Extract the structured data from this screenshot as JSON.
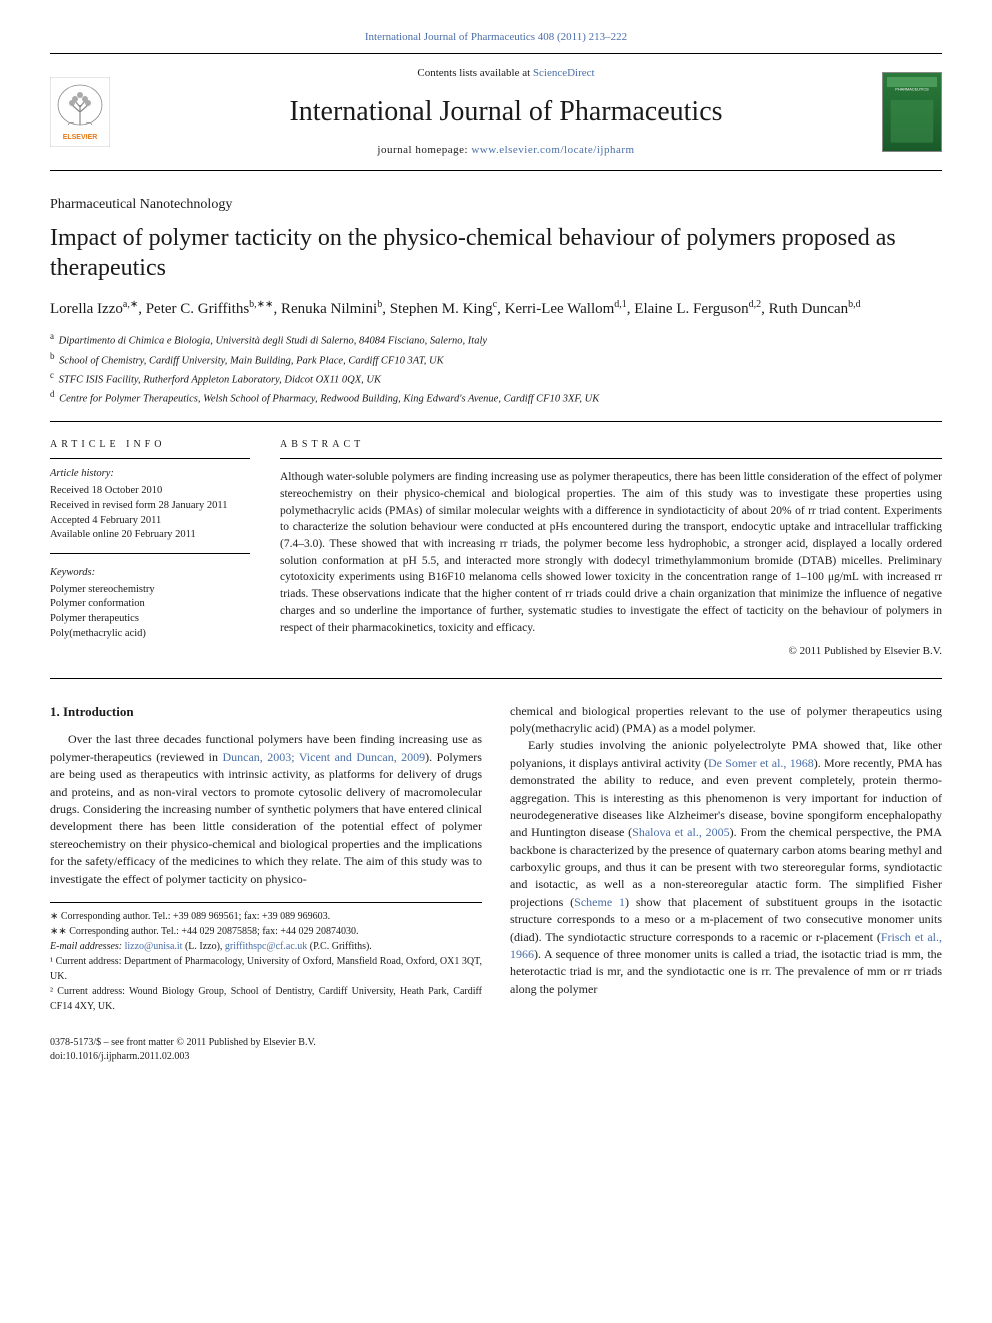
{
  "top_citation": "International Journal of Pharmaceutics 408 (2011) 213–222",
  "header": {
    "contents_prefix": "Contents lists available at ",
    "contents_link": "ScienceDirect",
    "journal_name": "International Journal of Pharmaceutics",
    "homepage_prefix": "journal homepage: ",
    "homepage_url": "www.elsevier.com/locate/ijpharm",
    "cover_label": "PHARMACEUTICS"
  },
  "section_label": "Pharmaceutical Nanotechnology",
  "title": "Impact of polymer tacticity on the physico-chemical behaviour of polymers proposed as therapeutics",
  "authors_html": "Lorella Izzo<sup>a,∗</sup>, Peter C. Griffiths<sup>b,∗∗</sup>, Renuka Nilmini<sup>b</sup>, Stephen M. King<sup>c</sup>, Kerri-Lee Wallom<sup>d,1</sup>, Elaine L. Ferguson<sup>d,2</sup>, Ruth Duncan<sup>b,d</sup>",
  "affiliations": [
    {
      "sup": "a",
      "text": "Dipartimento di Chimica e Biologia, Università degli Studi di Salerno, 84084 Fisciano, Salerno, Italy"
    },
    {
      "sup": "b",
      "text": "School of Chemistry, Cardiff University, Main Building, Park Place, Cardiff CF10 3AT, UK"
    },
    {
      "sup": "c",
      "text": "STFC ISIS Facility, Rutherford Appleton Laboratory, Didcot OX11 0QX, UK"
    },
    {
      "sup": "d",
      "text": "Centre for Polymer Therapeutics, Welsh School of Pharmacy, Redwood Building, King Edward's Avenue, Cardiff CF10 3XF, UK"
    }
  ],
  "article_info": {
    "heading": "article info",
    "history_label": "Article history:",
    "history": [
      "Received 18 October 2010",
      "Received in revised form 28 January 2011",
      "Accepted 4 February 2011",
      "Available online 20 February 2011"
    ],
    "keywords_label": "Keywords:",
    "keywords": [
      "Polymer stereochemistry",
      "Polymer conformation",
      "Polymer therapeutics",
      "Poly(methacrylic acid)"
    ]
  },
  "abstract": {
    "heading": "abstract",
    "text": "Although water-soluble polymers are finding increasing use as polymer therapeutics, there has been little consideration of the effect of polymer stereochemistry on their physico-chemical and biological properties. The aim of this study was to investigate these properties using polymethacrylic acids (PMAs) of similar molecular weights with a difference in syndiotacticity of about 20% of rr triad content. Experiments to characterize the solution behaviour were conducted at pHs encountered during the transport, endocytic uptake and intracellular trafficking (7.4–3.0). These showed that with increasing rr triads, the polymer become less hydrophobic, a stronger acid, displayed a locally ordered solution conformation at pH 5.5, and interacted more strongly with dodecyl trimethylammonium bromide (DTAB) micelles. Preliminary cytotoxicity experiments using B16F10 melanoma cells showed lower toxicity in the concentration range of 1–100 μg/mL with increased rr triads. These observations indicate that the higher content of rr triads could drive a chain organization that minimize the influence of negative charges and so underline the importance of further, systematic studies to investigate the effect of tacticity on the behaviour of polymers in respect of their pharmacokinetics, toxicity and efficacy.",
    "copyright": "© 2011 Published by Elsevier B.V."
  },
  "body": {
    "section_heading": "1. Introduction",
    "para1_pre": "Over the last three decades functional polymers have been finding increasing use as polymer-therapeutics (reviewed in ",
    "para1_cite": "Duncan, 2003; Vicent and Duncan, 2009",
    "para1_post": "). Polymers are being used as therapeutics with intrinsic activity, as platforms for delivery of drugs and proteins, and as non-viral vectors to promote cytosolic delivery of macromolecular drugs. Considering the increasing number of synthetic polymers that have entered clinical development there has been little consideration of the potential effect of polymer stereochemistry on their physico-chemical and biological properties and the implications for the safety/efficacy of the medicines to which they relate. The aim of this study was to investigate the effect of polymer tacticity on physico-",
    "para1_tail": "chemical and biological properties relevant to the use of polymer therapeutics using poly(methacrylic acid) (PMA) as a model polymer.",
    "para2_a": "Early studies involving the anionic polyelectrolyte PMA showed that, like other polyanions, it displays antiviral activity (",
    "para2_cite1": "De Somer et al., 1968",
    "para2_b": "). More recently, PMA has demonstrated the ability to reduce, and even prevent completely, protein thermo-aggregation. This is interesting as this phenomenon is very important for induction of neurodegenerative diseases like Alzheimer's disease, bovine spongiform encephalopathy and Huntington disease (",
    "para2_cite2": "Shalova et al., 2005",
    "para2_c": "). From the chemical perspective, the PMA backbone is characterized by the presence of quaternary carbon atoms bearing methyl and carboxylic groups, and thus it can be present with two stereoregular forms, syndiotactic and isotactic, as well as a non-stereoregular atactic form. The simplified Fisher projections (",
    "para2_cite3": "Scheme 1",
    "para2_d": ") show that placement of substituent groups in the isotactic structure corresponds to a meso or a m-placement of two consecutive monomer units (diad). The syndiotactic structure corresponds to a racemic or r-placement (",
    "para2_cite4": "Frisch et al., 1966",
    "para2_e": "). A sequence of three monomer units is called a triad, the isotactic triad is mm, the heterotactic triad is mr, and the syndiotactic one is rr. The prevalence of mm or rr triads along the polymer"
  },
  "footnotes": {
    "corr1": "∗ Corresponding author. Tel.: +39 089 969561; fax: +39 089 969603.",
    "corr2": "∗∗ Corresponding author. Tel.: +44 029 20875858; fax: +44 029 20874030.",
    "email_label": "E-mail addresses: ",
    "email1": "lizzo@unisa.it",
    "email1_who": " (L. Izzo), ",
    "email2": "griffithspc@cf.ac.uk",
    "email2_who": " (P.C. Griffiths).",
    "note1": "¹ Current address: Department of Pharmacology, University of Oxford, Mansfield Road, Oxford, OX1 3QT, UK.",
    "note2": "² Current address: Wound Biology Group, School of Dentistry, Cardiff University, Heath Park, Cardiff CF14 4XY, UK."
  },
  "doi": {
    "line1": "0378-5173/$ – see front matter © 2011 Published by Elsevier B.V.",
    "line2": "doi:10.1016/j.ijpharm.2011.02.003"
  },
  "colors": {
    "link": "#4a6fa8",
    "text": "#1a1a1a",
    "elsevier_orange": "#e67817",
    "cover_green": "#2a7a3a"
  }
}
